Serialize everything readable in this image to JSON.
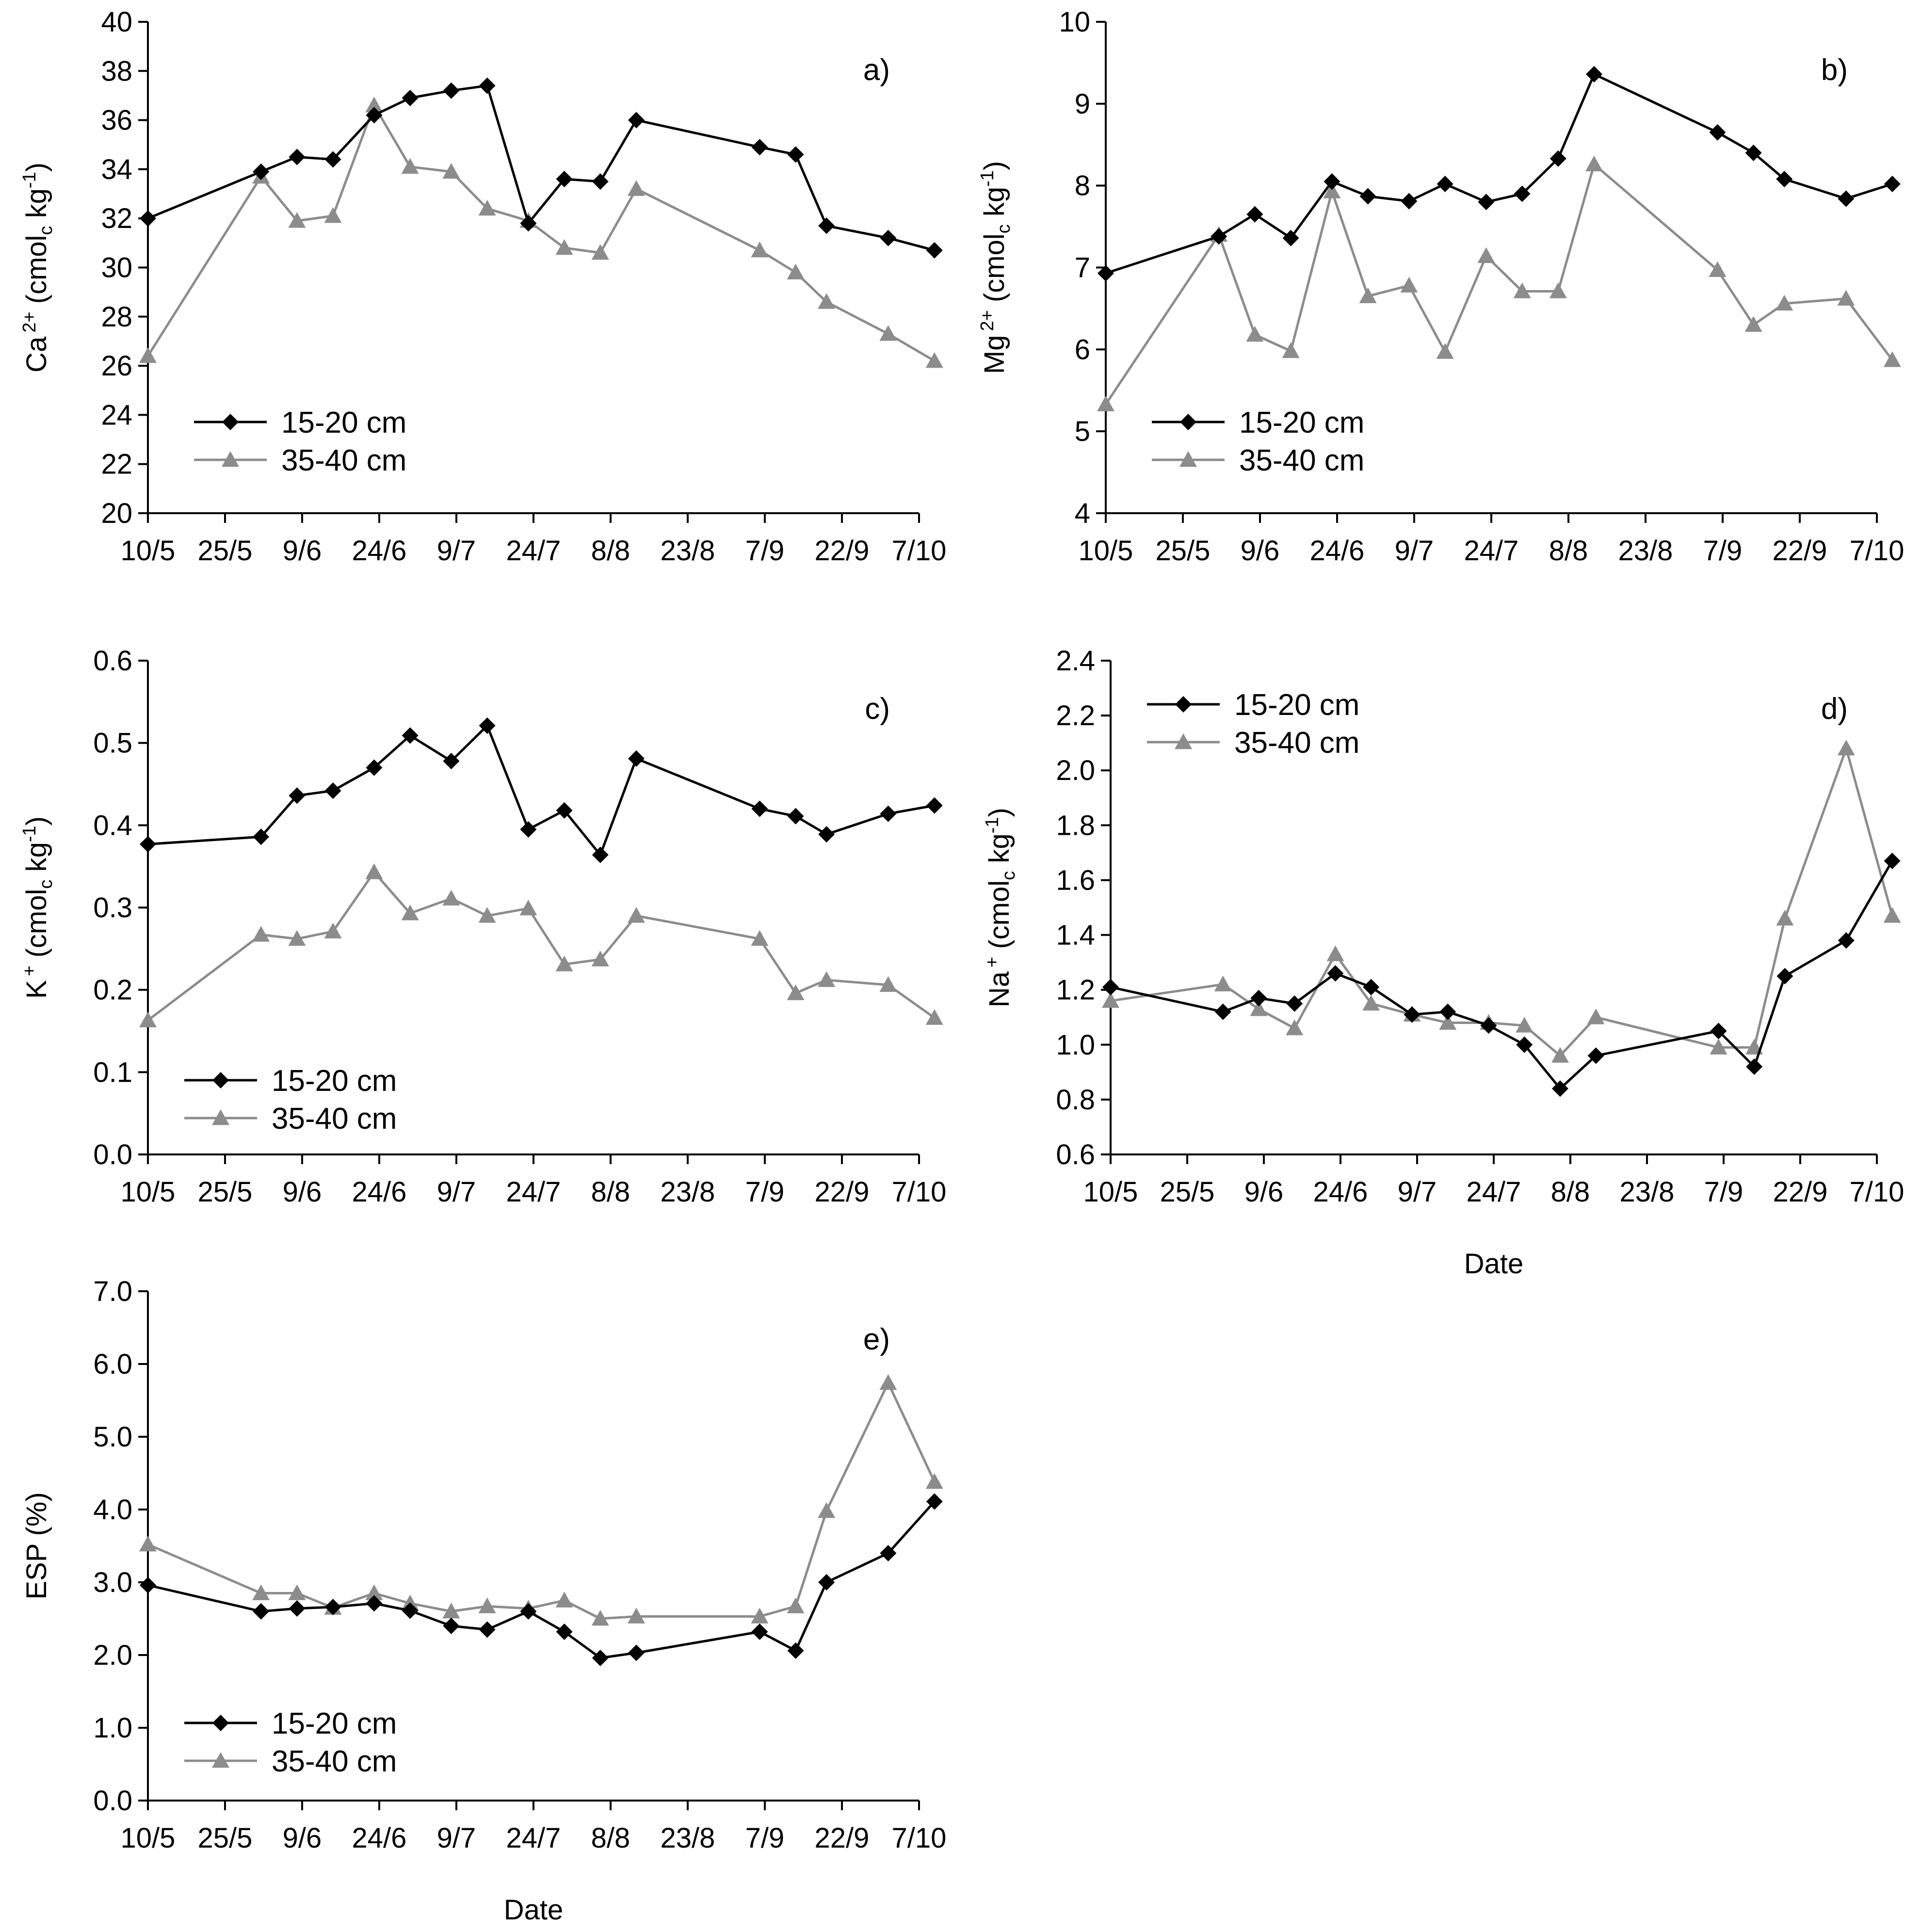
{
  "figure": {
    "date_labels": [
      "10/5",
      "25/5",
      "9/6",
      "24/6",
      "9/7",
      "24/7",
      "8/8",
      "23/8",
      "7/9",
      "22/9",
      "7/10"
    ],
    "date_ticks": [
      130,
      145,
      160,
      175,
      190,
      205,
      220,
      235,
      250,
      265,
      280
    ],
    "sample_days": [
      130,
      152,
      159,
      166,
      174,
      181,
      189,
      196,
      204,
      211,
      218,
      225,
      249,
      256,
      262,
      274,
      283
    ],
    "legend": {
      "s1": "15-20 cm",
      "s2": "35-40 cm"
    },
    "colors": {
      "s1": "#000000",
      "s2": "#8c8c8c"
    }
  },
  "chart_data": [
    {
      "id": "a",
      "type": "line",
      "panel_label": "a)",
      "ylabel": {
        "base": "Ca",
        "sup": "2+",
        "unit_main": " (cmol",
        "unit_sub": "c",
        "unit_tail": " kg",
        "unit_exp": "-1",
        "close": ")"
      },
      "xlabel": "",
      "ylim": [
        20,
        40
      ],
      "yticks": [
        20,
        22,
        24,
        26,
        28,
        30,
        32,
        34,
        36,
        38,
        40
      ],
      "ydecimals": 0,
      "legend_position": "bottom-left",
      "series": [
        {
          "name": "15-20 cm",
          "marker": "diamond",
          "x": [
            130,
            152,
            159,
            166,
            174,
            181,
            189,
            196,
            204,
            211,
            218,
            225,
            249,
            256,
            262,
            274,
            283
          ],
          "y": [
            32.0,
            33.9,
            34.5,
            34.4,
            36.2,
            36.9,
            37.2,
            37.4,
            31.8,
            33.6,
            33.5,
            36.0,
            34.9,
            34.6,
            31.7,
            31.2,
            30.7
          ]
        },
        {
          "name": "35-40 cm",
          "marker": "triangle",
          "x": [
            130,
            152,
            159,
            166,
            174,
            181,
            189,
            196,
            204,
            211,
            218,
            225,
            249,
            256,
            262,
            274,
            283
          ],
          "y": [
            26.4,
            33.7,
            31.9,
            32.1,
            36.6,
            34.1,
            33.9,
            32.4,
            31.9,
            30.8,
            30.6,
            33.2,
            30.7,
            29.8,
            28.6,
            27.3,
            26.2
          ]
        }
      ]
    },
    {
      "id": "b",
      "type": "line",
      "panel_label": "b)",
      "ylabel": {
        "base": "Mg",
        "sup": "2+",
        "unit_main": " (cmol",
        "unit_sub": "c",
        "unit_tail": " kg",
        "unit_exp": "-1",
        "close": ")"
      },
      "xlabel": "",
      "ylim": [
        4,
        10
      ],
      "yticks": [
        4,
        5,
        6,
        7,
        8,
        9,
        10
      ],
      "ydecimals": 0,
      "legend_position": "bottom-left",
      "series": [
        {
          "name": "15-20 cm",
          "marker": "diamond",
          "x": [
            130,
            152,
            159,
            166,
            174,
            181,
            189,
            196,
            204,
            211,
            218,
            225,
            249,
            256,
            262,
            274,
            283
          ],
          "y": [
            6.93,
            7.38,
            7.65,
            7.36,
            8.05,
            7.87,
            7.81,
            8.02,
            7.8,
            7.9,
            8.33,
            9.36,
            8.65,
            8.4,
            8.08,
            7.84,
            8.02
          ]
        },
        {
          "name": "35-40 cm",
          "marker": "triangle",
          "x": [
            130,
            152,
            159,
            166,
            174,
            181,
            189,
            196,
            204,
            211,
            218,
            225,
            249,
            256,
            262,
            274,
            283
          ],
          "y": [
            5.33,
            7.4,
            6.18,
            5.98,
            7.93,
            6.65,
            6.78,
            5.97,
            7.14,
            6.71,
            6.71,
            8.26,
            6.97,
            6.3,
            6.56,
            6.62,
            5.87
          ]
        }
      ]
    },
    {
      "id": "c",
      "type": "line",
      "panel_label": "c)",
      "ylabel": {
        "base": "K",
        "sup": "+",
        "unit_main": " (cmol",
        "unit_sub": "c",
        "unit_tail": " kg",
        "unit_exp": "-1",
        "close": ")"
      },
      "xlabel": "",
      "ylim": [
        0.0,
        0.6
      ],
      "yticks": [
        0.0,
        0.1,
        0.2,
        0.3,
        0.4,
        0.5,
        0.6
      ],
      "ydecimals": 1,
      "legend_position": "bottom-left",
      "series": [
        {
          "name": "15-20 cm",
          "marker": "diamond",
          "x": [
            130,
            152,
            159,
            166,
            174,
            181,
            189,
            196,
            204,
            211,
            218,
            225,
            249,
            256,
            262,
            274,
            283
          ],
          "y": [
            0.377,
            0.386,
            0.436,
            0.442,
            0.47,
            0.509,
            0.478,
            0.521,
            0.395,
            0.418,
            0.364,
            0.481,
            0.42,
            0.411,
            0.389,
            0.414,
            0.424
          ]
        },
        {
          "name": "35-40 cm",
          "marker": "triangle",
          "x": [
            130,
            152,
            159,
            166,
            174,
            181,
            189,
            196,
            204,
            211,
            218,
            225,
            249,
            256,
            262,
            274,
            283
          ],
          "y": [
            0.163,
            0.267,
            0.262,
            0.271,
            0.343,
            0.293,
            0.311,
            0.29,
            0.299,
            0.231,
            0.237,
            0.29,
            0.262,
            0.196,
            0.212,
            0.206,
            0.166
          ]
        }
      ]
    },
    {
      "id": "d",
      "type": "line",
      "panel_label": "d)",
      "ylabel": {
        "base": "Na",
        "sup": "+",
        "unit_main": " (cmol",
        "unit_sub": "c",
        "unit_tail": " kg",
        "unit_exp": "-1",
        "close": ")"
      },
      "xlabel": "Date",
      "ylim": [
        0.6,
        2.4
      ],
      "yticks": [
        0.6,
        0.8,
        1.0,
        1.2,
        1.4,
        1.6,
        1.8,
        2.0,
        2.2,
        2.4
      ],
      "ydecimals": 1,
      "legend_position": "top-left",
      "series": [
        {
          "name": "15-20 cm",
          "marker": "diamond",
          "x": [
            130,
            152,
            159,
            166,
            174,
            181,
            189,
            196,
            204,
            211,
            218,
            225,
            249,
            256,
            262,
            274,
            283
          ],
          "y": [
            1.21,
            1.12,
            1.17,
            1.15,
            1.26,
            1.21,
            1.11,
            1.12,
            1.07,
            1.0,
            0.84,
            0.96,
            1.05,
            0.92,
            1.25,
            1.38,
            1.67
          ]
        },
        {
          "name": "35-40 cm",
          "marker": "triangle",
          "x": [
            130,
            152,
            159,
            166,
            174,
            181,
            189,
            196,
            204,
            211,
            218,
            225,
            249,
            256,
            262,
            274,
            283
          ],
          "y": [
            1.16,
            1.22,
            1.13,
            1.06,
            1.33,
            1.15,
            1.11,
            1.08,
            1.08,
            1.07,
            0.96,
            1.1,
            0.99,
            0.99,
            1.46,
            2.08,
            1.47
          ]
        }
      ]
    },
    {
      "id": "e",
      "type": "line",
      "panel_label": "e)",
      "ylabel": {
        "base": "ESP (%)",
        "sup": "",
        "unit_main": "",
        "unit_sub": "",
        "unit_tail": "",
        "unit_exp": "",
        "close": ""
      },
      "xlabel": "Date",
      "ylim": [
        0.0,
        7.0
      ],
      "yticks": [
        0.0,
        1.0,
        2.0,
        3.0,
        4.0,
        5.0,
        6.0,
        7.0
      ],
      "ydecimals": 1,
      "legend_position": "bottom-left",
      "series": [
        {
          "name": "15-20 cm",
          "marker": "diamond",
          "x": [
            130,
            152,
            159,
            166,
            174,
            181,
            189,
            196,
            204,
            211,
            218,
            225,
            249,
            256,
            262,
            274,
            283
          ],
          "y": [
            2.96,
            2.6,
            2.64,
            2.66,
            2.71,
            2.61,
            2.4,
            2.35,
            2.6,
            2.32,
            1.96,
            2.03,
            2.32,
            2.06,
            3.0,
            3.4,
            4.11
          ]
        },
        {
          "name": "35-40 cm",
          "marker": "triangle",
          "x": [
            130,
            152,
            159,
            166,
            174,
            181,
            189,
            196,
            204,
            211,
            218,
            225,
            249,
            256,
            262,
            274,
            283
          ],
          "y": [
            3.52,
            2.85,
            2.85,
            2.65,
            2.85,
            2.71,
            2.6,
            2.67,
            2.64,
            2.75,
            2.5,
            2.53,
            2.53,
            2.67,
            3.98,
            5.74,
            4.38
          ]
        }
      ]
    }
  ]
}
